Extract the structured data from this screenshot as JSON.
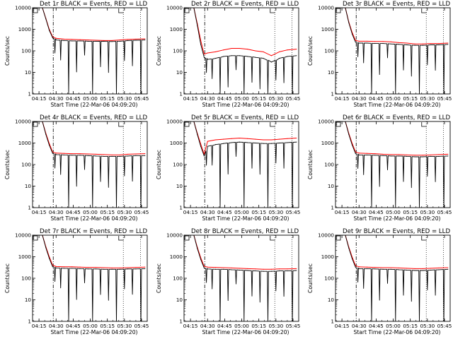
{
  "figure": {
    "ylabel": "Counts/sec",
    "xlabel": "Start Time (22-Mar-06 04:09:20)",
    "xtick_labels": [
      "04:15",
      "04:30",
      "04:45",
      "05:00",
      "05:15",
      "05:30",
      "05:45"
    ],
    "ytick_labels": [
      "1",
      "10",
      "100",
      "1000",
      "10000"
    ],
    "colors": {
      "events": "#000000",
      "lld": "#ff0000",
      "axes": "#000000"
    }
  },
  "chart_data": [
    {
      "type": "line",
      "title": "Det 1r BLACK = Events, RED = LLD",
      "x_time_range": [
        "04:09:20",
        "05:50:00"
      ],
      "y_log_range": [
        1,
        10000
      ],
      "series": [
        {
          "name": "Events",
          "color": "#000000",
          "x": [
            "04:09",
            "04:18",
            "04:21",
            "04:24",
            "04:27",
            "04:30",
            "04:37",
            "04:44",
            "04:51",
            "04:58",
            "05:05",
            "05:12",
            "05:19",
            "05:26",
            "05:33",
            "05:40",
            "05:48"
          ],
          "y": [
            10000,
            10000,
            3000,
            900,
            400,
            320,
            300,
            290,
            290,
            280,
            280,
            275,
            270,
            280,
            300,
            310,
            320
          ]
        },
        {
          "name": "LLD",
          "color": "#ff0000",
          "x": [
            "04:09",
            "04:18",
            "04:21",
            "04:24",
            "04:27",
            "04:30",
            "04:37",
            "04:44",
            "04:51",
            "04:58",
            "05:05",
            "05:12",
            "05:19",
            "05:26",
            "05:33",
            "05:40",
            "05:48"
          ],
          "y": [
            10000,
            10000,
            3200,
            1000,
            450,
            380,
            350,
            340,
            330,
            320,
            310,
            300,
            300,
            320,
            340,
            350,
            360
          ]
        }
      ]
    },
    {
      "type": "line",
      "title": "Det 2r BLACK = Events, RED = LLD",
      "x_time_range": [
        "04:09:20",
        "05:50:00"
      ],
      "y_log_range": [
        1,
        10000
      ],
      "series": [
        {
          "name": "Events",
          "color": "#000000",
          "x": [
            "04:09",
            "04:18",
            "04:21",
            "04:24",
            "04:27",
            "04:30",
            "04:37",
            "04:44",
            "04:51",
            "04:58",
            "05:05",
            "05:12",
            "05:19",
            "05:26",
            "05:33",
            "05:40",
            "05:48"
          ],
          "y": [
            10000,
            10000,
            1500,
            200,
            50,
            40,
            45,
            55,
            60,
            60,
            55,
            50,
            45,
            30,
            45,
            55,
            60
          ]
        },
        {
          "name": "LLD",
          "color": "#ff0000",
          "x": [
            "04:09",
            "04:18",
            "04:21",
            "04:24",
            "04:27",
            "04:30",
            "04:37",
            "04:44",
            "04:51",
            "04:58",
            "05:05",
            "05:12",
            "05:19",
            "05:26",
            "05:33",
            "05:40",
            "05:48"
          ],
          "y": [
            10000,
            10000,
            1800,
            300,
            70,
            80,
            90,
            110,
            130,
            130,
            120,
            100,
            90,
            60,
            90,
            110,
            120
          ]
        }
      ]
    },
    {
      "type": "line",
      "title": "Det 3r BLACK = Events, RED = LLD",
      "x_time_range": [
        "04:09:20",
        "05:50:00"
      ],
      "y_log_range": [
        1,
        10000
      ],
      "series": [
        {
          "name": "Events",
          "color": "#000000",
          "x": [
            "04:09",
            "04:18",
            "04:21",
            "04:24",
            "04:27",
            "04:30",
            "04:37",
            "04:44",
            "04:51",
            "04:58",
            "05:05",
            "05:12",
            "05:19",
            "05:26",
            "05:33",
            "05:40",
            "05:48"
          ],
          "y": [
            10000,
            10000,
            2000,
            600,
            250,
            230,
            230,
            220,
            220,
            210,
            200,
            190,
            180,
            180,
            190,
            190,
            200
          ]
        },
        {
          "name": "LLD",
          "color": "#ff0000",
          "x": [
            "04:09",
            "04:18",
            "04:21",
            "04:24",
            "04:27",
            "04:30",
            "04:37",
            "04:44",
            "04:51",
            "04:58",
            "05:05",
            "05:12",
            "05:19",
            "05:26",
            "05:33",
            "05:40",
            "05:48"
          ],
          "y": [
            10000,
            10000,
            2200,
            700,
            300,
            280,
            280,
            270,
            270,
            260,
            240,
            230,
            210,
            210,
            220,
            220,
            230
          ]
        }
      ]
    },
    {
      "type": "line",
      "title": "Det 4r BLACK = Events, RED = LLD",
      "x_time_range": [
        "04:09:20",
        "05:50:00"
      ],
      "y_log_range": [
        1,
        10000
      ],
      "series": [
        {
          "name": "Events",
          "color": "#000000",
          "x": [
            "04:09",
            "04:18",
            "04:21",
            "04:24",
            "04:27",
            "04:30",
            "04:37",
            "04:44",
            "04:51",
            "04:58",
            "05:05",
            "05:12",
            "05:19",
            "05:26",
            "05:33",
            "05:40",
            "05:48"
          ],
          "y": [
            10000,
            10000,
            2500,
            800,
            330,
            290,
            280,
            270,
            270,
            260,
            250,
            240,
            240,
            240,
            250,
            260,
            260
          ]
        },
        {
          "name": "LLD",
          "color": "#ff0000",
          "x": [
            "04:09",
            "04:18",
            "04:21",
            "04:24",
            "04:27",
            "04:30",
            "04:37",
            "04:44",
            "04:51",
            "04:58",
            "05:05",
            "05:12",
            "05:19",
            "05:26",
            "05:33",
            "05:40",
            "05:48"
          ],
          "y": [
            10000,
            10000,
            2800,
            950,
            380,
            340,
            330,
            320,
            320,
            310,
            300,
            290,
            280,
            280,
            300,
            310,
            320
          ]
        }
      ]
    },
    {
      "type": "line",
      "title": "Det 5r BLACK = Events, RED = LLD",
      "x_time_range": [
        "04:09:20",
        "05:50:00"
      ],
      "y_log_range": [
        1,
        10000
      ],
      "series": [
        {
          "name": "Events",
          "color": "#000000",
          "x": [
            "04:09",
            "04:18",
            "04:21",
            "04:24",
            "04:27",
            "04:30",
            "04:37",
            "04:44",
            "04:51",
            "04:58",
            "05:05",
            "05:12",
            "05:19",
            "05:26",
            "05:33",
            "05:40",
            "05:48"
          ],
          "y": [
            10000,
            10000,
            2500,
            700,
            250,
            700,
            850,
            950,
            1050,
            1100,
            1050,
            1000,
            950,
            950,
            1000,
            1050,
            1100
          ]
        },
        {
          "name": "LLD",
          "color": "#ff0000",
          "x": [
            "04:09",
            "04:18",
            "04:21",
            "04:24",
            "04:27",
            "04:30",
            "04:37",
            "04:44",
            "04:51",
            "04:58",
            "05:05",
            "05:12",
            "05:19",
            "05:26",
            "05:33",
            "05:40",
            "05:48"
          ],
          "y": [
            10000,
            10000,
            2800,
            900,
            300,
            1200,
            1400,
            1500,
            1600,
            1700,
            1600,
            1500,
            1400,
            1400,
            1500,
            1600,
            1700
          ]
        }
      ]
    },
    {
      "type": "line",
      "title": "Det 6r BLACK = Events, RED = LLD",
      "x_time_range": [
        "04:09:20",
        "05:50:00"
      ],
      "y_log_range": [
        1,
        10000
      ],
      "series": [
        {
          "name": "Events",
          "color": "#000000",
          "x": [
            "04:09",
            "04:18",
            "04:21",
            "04:24",
            "04:27",
            "04:30",
            "04:37",
            "04:44",
            "04:51",
            "04:58",
            "05:05",
            "05:12",
            "05:19",
            "05:26",
            "05:33",
            "05:40",
            "05:48"
          ],
          "y": [
            10000,
            10000,
            2500,
            800,
            320,
            280,
            280,
            270,
            260,
            250,
            250,
            240,
            230,
            230,
            240,
            240,
            250
          ]
        },
        {
          "name": "LLD",
          "color": "#ff0000",
          "x": [
            "04:09",
            "04:18",
            "04:21",
            "04:24",
            "04:27",
            "04:30",
            "04:37",
            "04:44",
            "04:51",
            "04:58",
            "05:05",
            "05:12",
            "05:19",
            "05:26",
            "05:33",
            "05:40",
            "05:48"
          ],
          "y": [
            10000,
            10000,
            2800,
            950,
            380,
            340,
            330,
            320,
            300,
            290,
            290,
            280,
            270,
            270,
            280,
            290,
            300
          ]
        }
      ]
    },
    {
      "type": "line",
      "title": "Det 7r BLACK = Events, RED = LLD",
      "x_time_range": [
        "04:09:20",
        "05:50:00"
      ],
      "y_log_range": [
        1,
        10000
      ],
      "series": [
        {
          "name": "Events",
          "color": "#000000",
          "x": [
            "04:09",
            "04:18",
            "04:21",
            "04:24",
            "04:27",
            "04:30",
            "04:37",
            "04:44",
            "04:51",
            "04:58",
            "05:05",
            "05:12",
            "05:19",
            "05:26",
            "05:33",
            "05:40",
            "05:48"
          ],
          "y": [
            10000,
            10000,
            2600,
            850,
            340,
            300,
            290,
            290,
            280,
            270,
            270,
            260,
            260,
            260,
            270,
            270,
            280
          ]
        },
        {
          "name": "LLD",
          "color": "#ff0000",
          "x": [
            "04:09",
            "04:18",
            "04:21",
            "04:24",
            "04:27",
            "04:30",
            "04:37",
            "04:44",
            "04:51",
            "04:58",
            "05:05",
            "05:12",
            "05:19",
            "05:26",
            "05:33",
            "05:40",
            "05:48"
          ],
          "y": [
            10000,
            10000,
            2900,
            1000,
            400,
            350,
            340,
            340,
            330,
            320,
            320,
            310,
            300,
            300,
            310,
            320,
            330
          ]
        }
      ]
    },
    {
      "type": "line",
      "title": "Det 8r BLACK = Events, RED = LLD",
      "x_time_range": [
        "04:09:20",
        "05:50:00"
      ],
      "y_log_range": [
        1,
        10000
      ],
      "series": [
        {
          "name": "Events",
          "color": "#000000",
          "x": [
            "04:09",
            "04:18",
            "04:21",
            "04:24",
            "04:27",
            "04:30",
            "04:37",
            "04:44",
            "04:51",
            "04:58",
            "05:05",
            "05:12",
            "05:19",
            "05:26",
            "05:33",
            "05:40",
            "05:48"
          ],
          "y": [
            10000,
            10000,
            2400,
            750,
            300,
            270,
            260,
            260,
            250,
            240,
            230,
            220,
            210,
            210,
            220,
            220,
            230
          ]
        },
        {
          "name": "LLD",
          "color": "#ff0000",
          "x": [
            "04:09",
            "04:18",
            "04:21",
            "04:24",
            "04:27",
            "04:30",
            "04:37",
            "04:44",
            "04:51",
            "04:58",
            "05:05",
            "05:12",
            "05:19",
            "05:26",
            "05:33",
            "05:40",
            "05:48"
          ],
          "y": [
            10000,
            10000,
            2700,
            900,
            360,
            330,
            320,
            310,
            300,
            290,
            280,
            270,
            260,
            260,
            270,
            270,
            280
          ]
        }
      ]
    },
    {
      "type": "line",
      "title": "Det 9r BLACK = Events, RED = LLD",
      "x_time_range": [
        "04:09:20",
        "05:50:00"
      ],
      "y_log_range": [
        1,
        10000
      ],
      "series": [
        {
          "name": "Events",
          "color": "#000000",
          "x": [
            "04:09",
            "04:18",
            "04:21",
            "04:24",
            "04:27",
            "04:30",
            "04:37",
            "04:44",
            "04:51",
            "04:58",
            "05:05",
            "05:12",
            "05:19",
            "05:26",
            "05:33",
            "05:40",
            "05:48"
          ],
          "y": [
            10000,
            10000,
            2500,
            800,
            320,
            280,
            280,
            270,
            260,
            260,
            250,
            240,
            230,
            230,
            240,
            250,
            260
          ]
        },
        {
          "name": "LLD",
          "color": "#ff0000",
          "x": [
            "04:09",
            "04:18",
            "04:21",
            "04:24",
            "04:27",
            "04:30",
            "04:37",
            "04:44",
            "04:51",
            "04:58",
            "05:05",
            "05:12",
            "05:19",
            "05:26",
            "05:33",
            "05:40",
            "05:48"
          ],
          "y": [
            10000,
            10000,
            2800,
            950,
            380,
            340,
            330,
            320,
            310,
            310,
            300,
            290,
            280,
            280,
            290,
            300,
            310
          ]
        }
      ]
    }
  ]
}
